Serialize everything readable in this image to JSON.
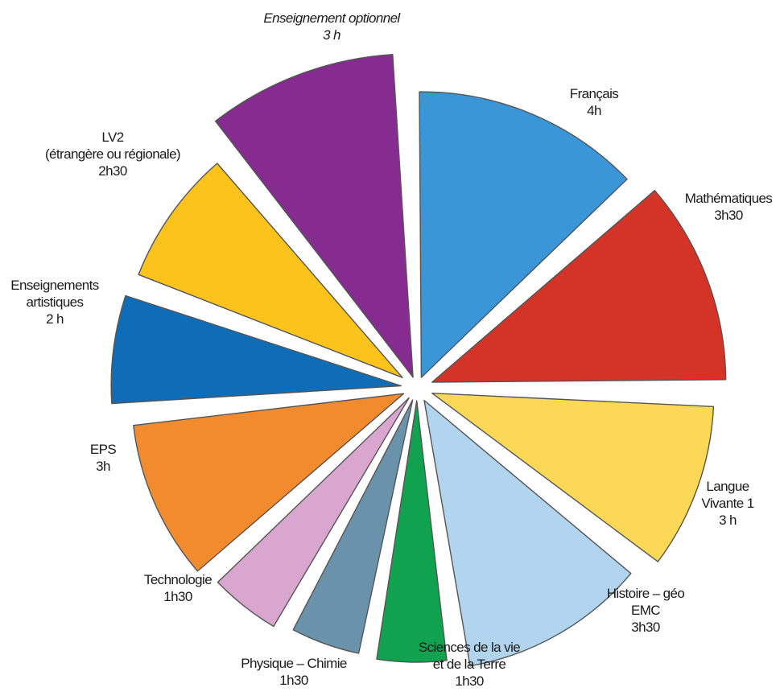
{
  "chart_data": {
    "type": "pie",
    "title": "",
    "legend": "none",
    "slices": [
      {
        "key": "francais",
        "lines": [
          "Français",
          "4h"
        ],
        "value": 4.0,
        "color": "#3a96d6",
        "italic": false
      },
      {
        "key": "mathematiques",
        "lines": [
          "Mathématiques",
          "3h30"
        ],
        "value": 3.5,
        "color": "#d43328",
        "italic": false
      },
      {
        "key": "lv1",
        "lines": [
          "Langue",
          "Vivante 1",
          "3 h"
        ],
        "value": 3.0,
        "color": "#fbd957",
        "italic": false
      },
      {
        "key": "histoire",
        "lines": [
          "Histoire – géo",
          "EMC",
          "3h30"
        ],
        "value": 3.5,
        "color": "#b1d5ee",
        "italic": false
      },
      {
        "key": "svt",
        "lines": [
          "Sciences de la vie",
          "et de la Terre",
          "1h30"
        ],
        "value": 1.5,
        "color": "#10a24f",
        "italic": false
      },
      {
        "key": "physique",
        "lines": [
          "Physique – Chimie",
          "1h30"
        ],
        "value": 1.5,
        "color": "#6a93ab",
        "italic": false
      },
      {
        "key": "technologie",
        "lines": [
          "Technologie",
          "1h30"
        ],
        "value": 1.5,
        "color": "#d8a6cf",
        "italic": false
      },
      {
        "key": "eps",
        "lines": [
          "EPS",
          "3h"
        ],
        "value": 3.0,
        "color": "#f28a2e",
        "italic": false
      },
      {
        "key": "arts",
        "lines": [
          "Enseignements",
          "artistiques",
          "2 h"
        ],
        "value": 2.0,
        "color": "#0f6db8",
        "italic": false
      },
      {
        "key": "lv2",
        "lines": [
          "LV2",
          "(étrangère ou régionale)",
          "2h30"
        ],
        "value": 2.5,
        "color": "#fbc31b",
        "italic": false
      },
      {
        "key": "optionnel",
        "lines": [
          "Enseignement optionnel",
          "3 h"
        ],
        "value": 3.0,
        "color": "#862b8f",
        "italic": true
      }
    ]
  }
}
